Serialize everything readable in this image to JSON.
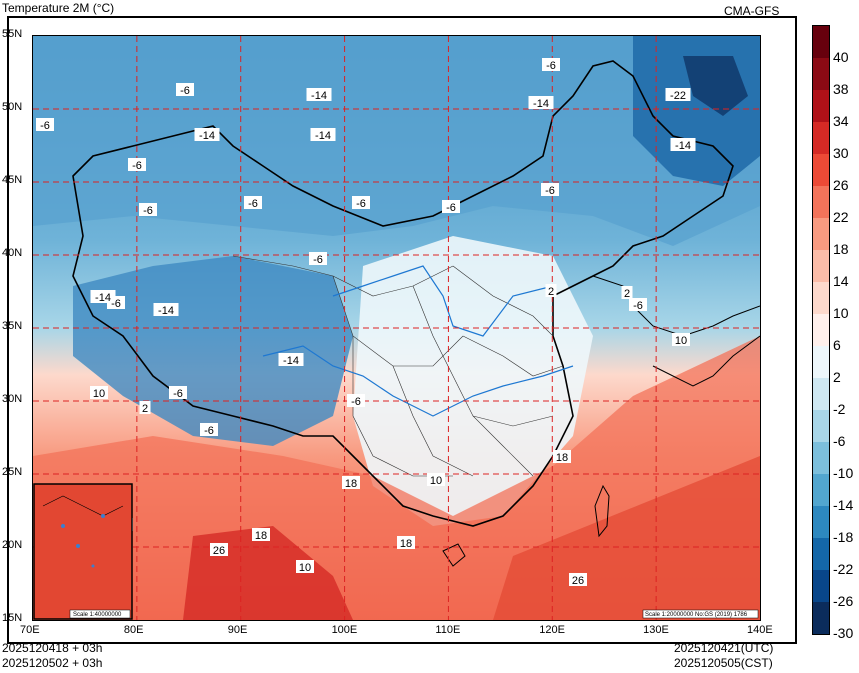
{
  "header": {
    "title": "Temperature  2M (°C)",
    "model": "CMA-GFS"
  },
  "footer": {
    "init_time": "2025120418 + 03h",
    "valid_time_local_init": "2025120502 + 03h",
    "valid_utc": "2025120421(UTC)",
    "valid_cst": "2025120505(CST)"
  },
  "axes": {
    "lat_labels": [
      "55N",
      "50N",
      "45N",
      "40N",
      "35N",
      "30N",
      "25N",
      "20N",
      "15N"
    ],
    "lon_labels": [
      "70E",
      "80E",
      "90E",
      "100E",
      "110E",
      "120E",
      "130E",
      "140E"
    ]
  },
  "colorbar": {
    "labels": [
      "40",
      "38",
      "34",
      "30",
      "26",
      "22",
      "18",
      "14",
      "10",
      "6",
      "2",
      "-2",
      "-6",
      "-10",
      "-14",
      "-18",
      "-22",
      "-26",
      "-30"
    ],
    "colors": [
      "#67000d",
      "#8b0a14",
      "#b01118",
      "#d52a25",
      "#ec4a36",
      "#f3735a",
      "#f89a80",
      "#fbbca8",
      "#fdd9cc",
      "#fff0ec",
      "#eef7fb",
      "#cfe8f2",
      "#a8d6e8",
      "#7cbfdc",
      "#52a6cf",
      "#2d88bf",
      "#1467a8",
      "#08468a",
      "#0b2c5c"
    ]
  },
  "contour_labels": [
    "-6",
    "-6",
    "-14",
    "-14",
    "-14",
    "-22",
    "-14",
    "-14",
    "-6",
    "-6",
    "-6",
    "-6",
    "-6",
    "-6",
    "-6",
    "-6",
    "-6",
    "-14",
    "-14",
    "-14",
    "-6",
    "-6",
    "10",
    "2",
    "-6",
    "2",
    "2",
    "-6",
    "10",
    "10",
    "18",
    "18",
    "26",
    "18",
    "18",
    "10",
    "18",
    "26"
  ],
  "inset": {
    "scale": "Scale 1:40000000"
  },
  "main_scale": "Scale 1:20000000 No:GS (2019) 1786"
}
